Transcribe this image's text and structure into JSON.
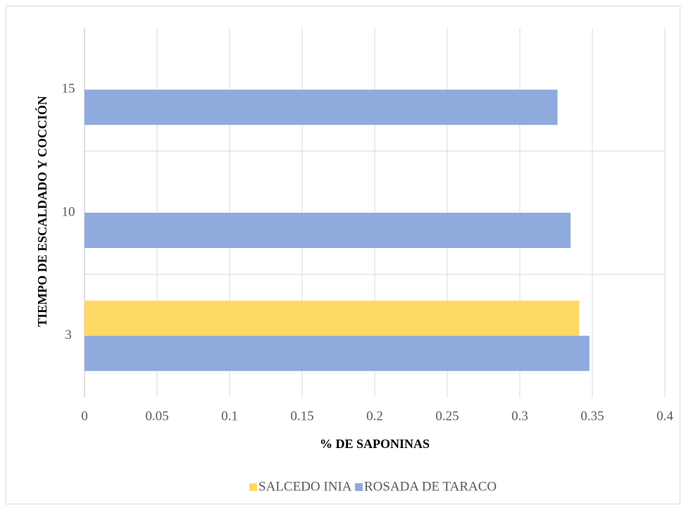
{
  "chart_data": {
    "type": "barh",
    "x_label": "% DE SAPONINAS",
    "y_label": "TIEMPO DE ESCALDADO Y COCCIÓN",
    "categories": [
      "3",
      "10",
      "15"
    ],
    "series": [
      {
        "name": "SALCEDO INIA",
        "color": "#ffd966",
        "values": [
          0.341,
          null,
          null
        ]
      },
      {
        "name": "ROSADA DE TARACO",
        "color": "#8faadc",
        "values": [
          0.348,
          0.335,
          0.326
        ]
      }
    ],
    "xlim": [
      0,
      0.4
    ],
    "xticks": [
      0,
      0.05,
      0.1,
      0.15,
      0.2,
      0.25,
      0.3,
      0.35,
      0.4
    ],
    "grid": true,
    "legend": "bottom"
  }
}
